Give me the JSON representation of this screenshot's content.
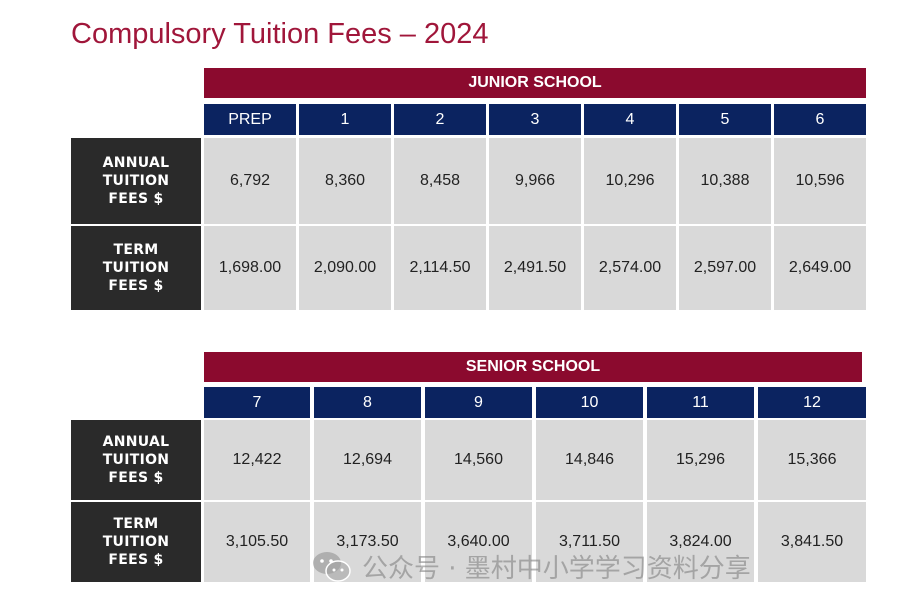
{
  "title": "Compulsory Tuition Fees – 2024",
  "junior": {
    "heading": "JUNIOR SCHOOL",
    "grades": [
      "PREP",
      "1",
      "2",
      "3",
      "4",
      "5",
      "6"
    ],
    "annual_label": [
      "ANNUAL",
      "TUITION",
      "FEES $"
    ],
    "annual": [
      "6,792",
      "8,360",
      "8,458",
      "9,966",
      "10,296",
      "10,388",
      "10,596"
    ],
    "term_label": [
      "TERM",
      "TUITION",
      "FEES $"
    ],
    "term": [
      "1,698.00",
      "2,090.00",
      "2,114.50",
      "2,491.50",
      "2,574.00",
      "2,597.00",
      "2,649.00"
    ]
  },
  "senior": {
    "heading": "SENIOR SCHOOL",
    "grades": [
      "7",
      "8",
      "9",
      "10",
      "11",
      "12"
    ],
    "annual_label": [
      "ANNUAL",
      "TUITION",
      "FEES $"
    ],
    "annual": [
      "12,422",
      "12,694",
      "14,560",
      "14,846",
      "15,296",
      "15,366"
    ],
    "term_label": [
      "TERM",
      "TUITION",
      "FEES $"
    ],
    "term": [
      "3,105.50",
      "3,173.50",
      "3,640.00",
      "3,711.50",
      "3,824.00",
      "3,841.50"
    ]
  },
  "watermark": {
    "icon": "wechat-icon",
    "text": "公众号 · 墨村中小学学习资料分享"
  }
}
